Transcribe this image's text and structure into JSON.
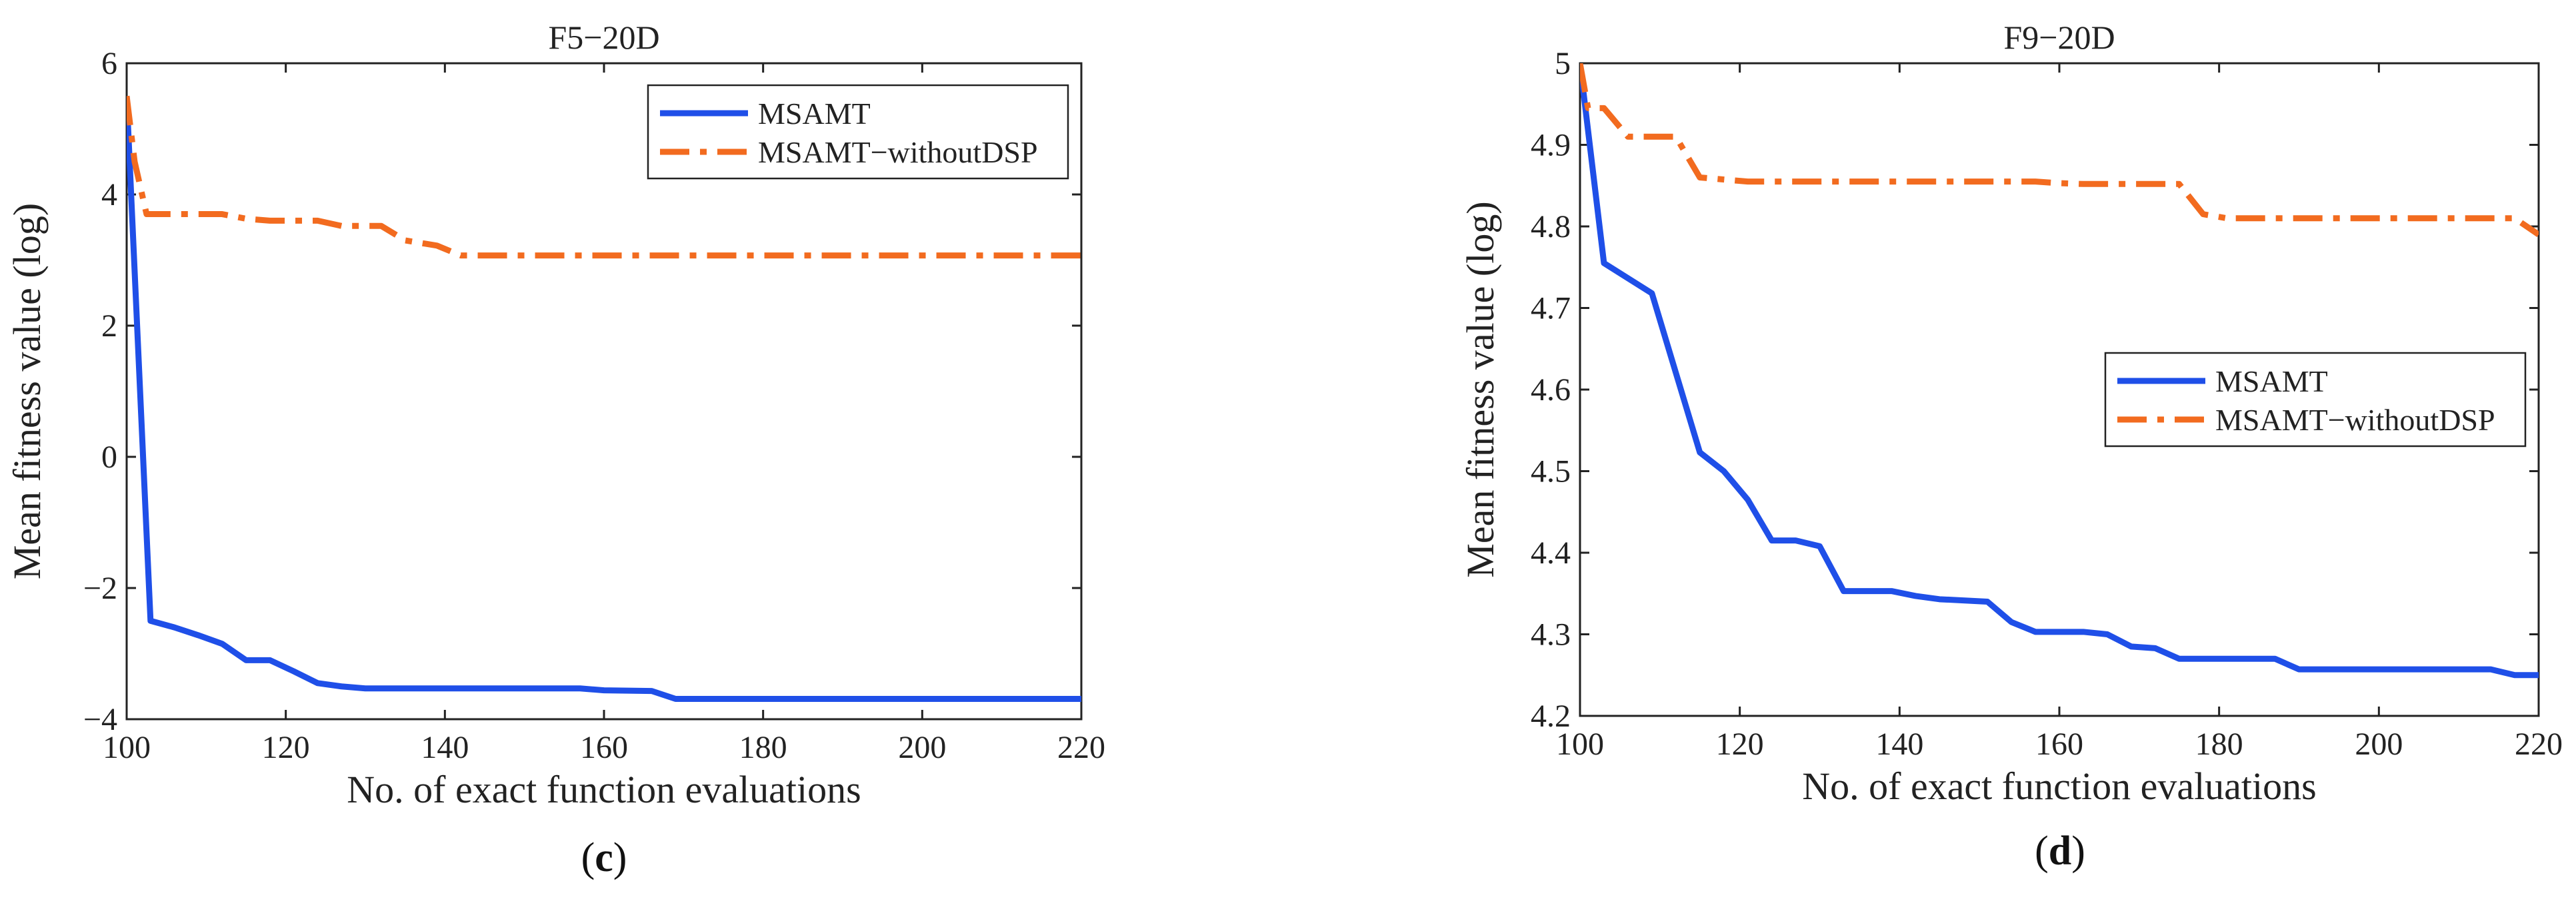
{
  "colors": {
    "msamt": "#1f4fe8",
    "without": "#f26b1f",
    "axis": "#222222"
  },
  "chart_data": [
    {
      "type": "line",
      "title": "F5−20D",
      "panel_label": "c",
      "xlabel": "No. of exact function evaluations",
      "ylabel": "Mean fitness value (log)",
      "xlim": [
        100,
        220
      ],
      "ylim": [
        -4,
        6
      ],
      "xticks": [
        "100",
        "120",
        "140",
        "160",
        "180",
        "200",
        "220"
      ],
      "yticks": [
        "−4",
        "−2",
        "0",
        "2",
        "4",
        "6"
      ],
      "legend_position": "top-right",
      "series": [
        {
          "name": "MSAMT",
          "style": "solid",
          "x": [
            100,
            103,
            106,
            109,
            112,
            115,
            118,
            121,
            124,
            127,
            130,
            157,
            160,
            166,
            169,
            220
          ],
          "y": [
            5.5,
            -2.5,
            -2.6,
            -2.72,
            -2.85,
            -3.1,
            -3.1,
            -3.27,
            -3.45,
            -3.5,
            -3.53,
            -3.53,
            -3.56,
            -3.57,
            -3.69,
            -3.69
          ]
        },
        {
          "name": "MSAMT−withoutDSP",
          "style": "dashdot",
          "x": [
            100,
            101,
            102.5,
            112,
            115,
            118,
            124,
            127,
            132,
            135,
            139,
            142,
            145,
            220
          ],
          "y": [
            5.5,
            4.5,
            3.7,
            3.7,
            3.63,
            3.6,
            3.6,
            3.52,
            3.52,
            3.3,
            3.22,
            3.07,
            3.07,
            3.07
          ]
        }
      ]
    },
    {
      "type": "line",
      "title": "F9−20D",
      "panel_label": "d",
      "xlabel": "No. of exact function evaluations",
      "ylabel": "Mean fitness value (log)",
      "xlim": [
        100,
        220
      ],
      "ylim": [
        4.2,
        5
      ],
      "xticks": [
        "100",
        "120",
        "140",
        "160",
        "180",
        "200",
        "220"
      ],
      "yticks": [
        "4.2",
        "4.3",
        "4.4",
        "4.5",
        "4.6",
        "4.7",
        "4.8",
        "4.9",
        "5"
      ],
      "legend_position": "center-right",
      "series": [
        {
          "name": "MSAMT",
          "style": "solid",
          "x": [
            100,
            103,
            109,
            115,
            118,
            121,
            124,
            127,
            130,
            133,
            139,
            142,
            145,
            151,
            154,
            157,
            163,
            166,
            169,
            172,
            175,
            187,
            190,
            214,
            217,
            220
          ],
          "y": [
            5.0,
            4.755,
            4.718,
            4.523,
            4.5,
            4.465,
            4.415,
            4.415,
            4.408,
            4.353,
            4.353,
            4.347,
            4.343,
            4.34,
            4.315,
            4.303,
            4.303,
            4.3,
            4.285,
            4.283,
            4.27,
            4.27,
            4.257,
            4.257,
            4.25,
            4.25
          ]
        },
        {
          "name": "MSAMT−withoutDSP",
          "style": "dashdot",
          "x": [
            100,
            101,
            103,
            106,
            112,
            115,
            121,
            157,
            160,
            163,
            175,
            178,
            181,
            217,
            220
          ],
          "y": [
            5.0,
            4.945,
            4.945,
            4.91,
            4.91,
            4.86,
            4.855,
            4.855,
            4.853,
            4.852,
            4.852,
            4.815,
            4.81,
            4.81,
            4.79
          ]
        }
      ]
    }
  ]
}
